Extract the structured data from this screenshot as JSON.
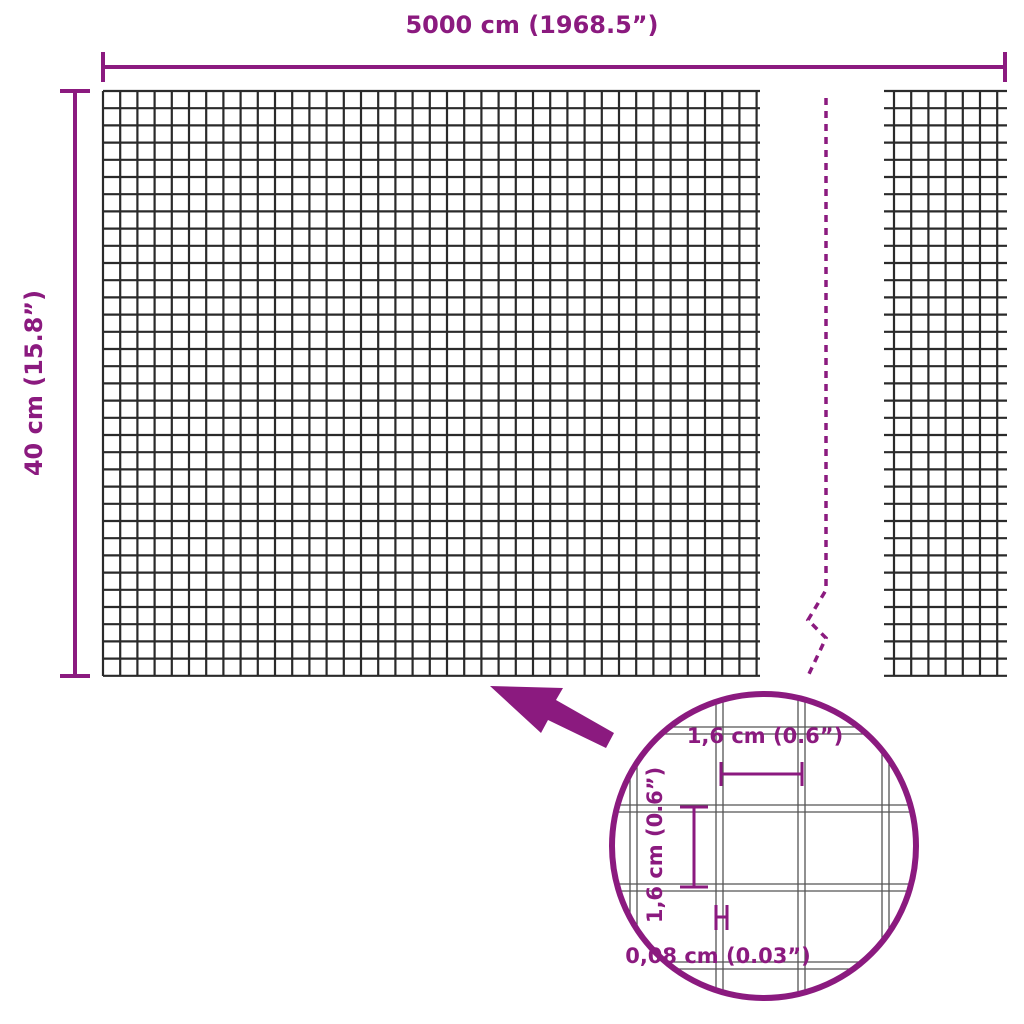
{
  "dimensions": {
    "length_label": "5000 cm (1968.5”)",
    "height_label": "40 cm (15.8”)",
    "mesh_width_label": "1,6 cm (0.6”)",
    "mesh_height_label": "1,6 cm (0.6”)",
    "wire_thickness_label": "0,08 cm (0.03”)"
  },
  "colors": {
    "accent": "#8b1a7f",
    "grid": "#2a2a2a"
  }
}
